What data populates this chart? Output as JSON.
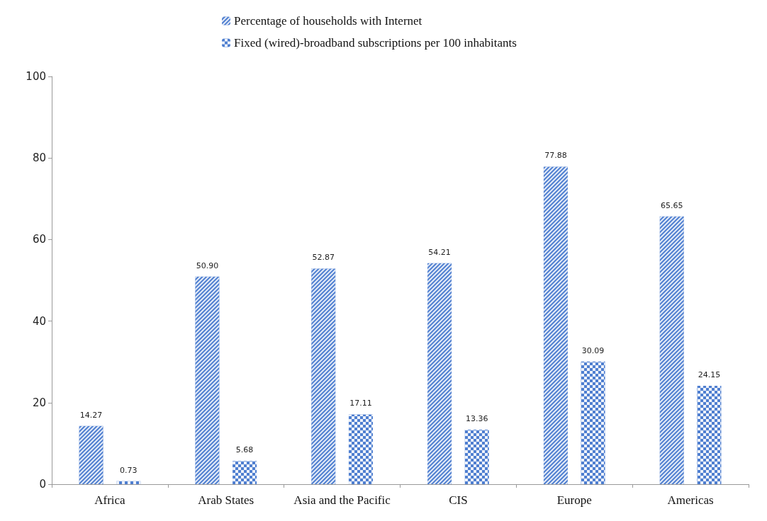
{
  "chart_data": {
    "type": "bar",
    "categories": [
      "Africa",
      "Arab States",
      "Asia and the Pacific",
      "CIS",
      "Europe",
      "Americas"
    ],
    "series": [
      {
        "name": "Percentage of households with Internet",
        "color": "#4f7fd0",
        "values": [
          14.27,
          50.9,
          52.87,
          54.21,
          77.88,
          65.65
        ],
        "value_labels": [
          "14.27",
          "50.90",
          "52.87",
          "54.21",
          "77.88",
          "65.65"
        ]
      },
      {
        "name": "Fixed (wired)-broadband subscriptions per 100 inhabitants",
        "color": "#4f7fd0",
        "values": [
          0.73,
          5.68,
          17.11,
          13.36,
          30.09,
          24.15
        ],
        "value_labels": [
          "0.73",
          "5.68",
          "17.11",
          "13.36",
          "30.09",
          "24.15"
        ]
      }
    ],
    "ylim": [
      0,
      100
    ],
    "yticks": [
      0,
      20,
      40,
      60,
      80,
      100
    ],
    "grid": false,
    "legend": "top"
  }
}
